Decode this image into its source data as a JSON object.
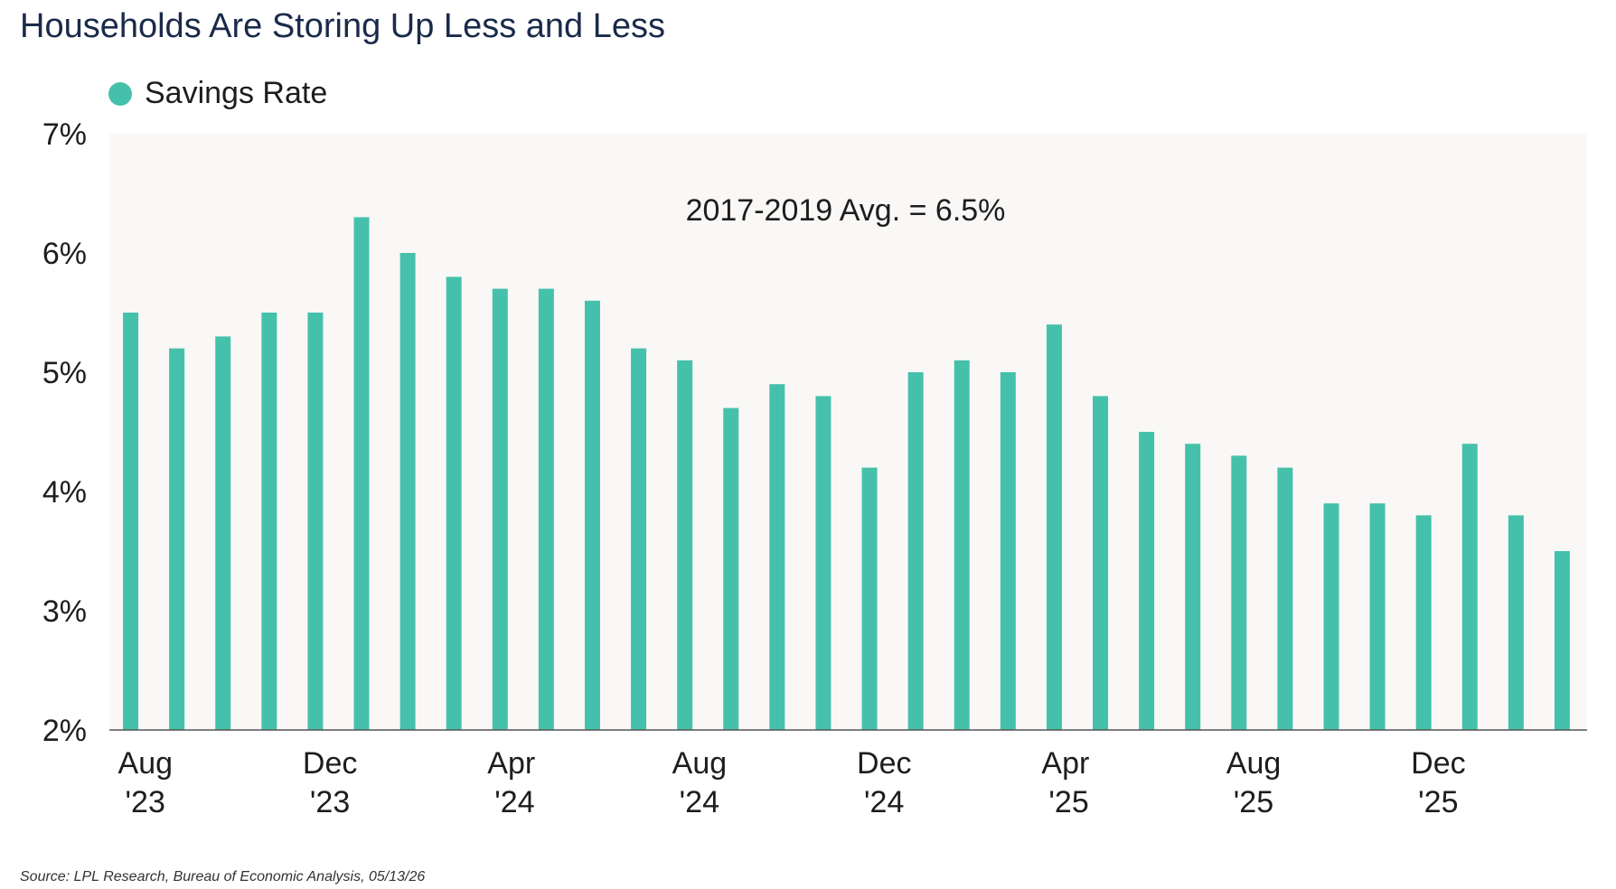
{
  "title": "Households Are Storing Up Less and Less",
  "source": "Source: LPL Research, Bureau of Economic Analysis, 05/13/26",
  "colors": {
    "bar": "#45c1ab",
    "plot_background": "#f9f8f6",
    "axis": "#555555",
    "title": "#1b2a4a"
  },
  "chart_data": {
    "type": "bar",
    "title": "Households Are Storing Up Less and Less",
    "legend": {
      "position": "top-left",
      "entries": [
        "Savings Rate"
      ]
    },
    "ylim": [
      2,
      7
    ],
    "yticks": [
      2,
      3,
      4,
      5,
      6,
      7
    ],
    "ytick_labels": [
      "2%",
      "3%",
      "4%",
      "5%",
      "6%",
      "7%"
    ],
    "grid": false,
    "categories": [
      "Aug '23",
      "Sep '23",
      "Oct '23",
      "Nov '23",
      "Dec '23",
      "Jan '24",
      "Feb '24",
      "Mar '24",
      "Apr '24",
      "May '24",
      "Jun '24",
      "Jul '24",
      "Aug '24",
      "Sep '24",
      "Oct '24",
      "Nov '24",
      "Dec '24",
      "Jan '25",
      "Feb '25",
      "Mar '25",
      "Apr '25",
      "May '25",
      "Jun '25",
      "Jul '25",
      "Aug '25",
      "Sep '25",
      "Oct '25",
      "Nov '25",
      "Dec '25",
      "Jan '26",
      "Feb '26",
      "Mar '26"
    ],
    "xtick_labels": [
      {
        "index": 0,
        "line1": "Aug",
        "line2": "'23"
      },
      {
        "index": 4,
        "line1": "Dec",
        "line2": "'23"
      },
      {
        "index": 8,
        "line1": "Apr",
        "line2": "'24"
      },
      {
        "index": 12,
        "line1": "Aug",
        "line2": "'24"
      },
      {
        "index": 16,
        "line1": "Dec",
        "line2": "'24"
      },
      {
        "index": 20,
        "line1": "Apr",
        "line2": "'25"
      },
      {
        "index": 24,
        "line1": "Aug",
        "line2": "'25"
      },
      {
        "index": 28,
        "line1": "Dec",
        "line2": "'25"
      }
    ],
    "series": [
      {
        "name": "Savings Rate",
        "values": [
          5.5,
          5.2,
          5.3,
          5.5,
          5.5,
          6.3,
          6.0,
          5.8,
          5.7,
          5.7,
          5.6,
          5.2,
          5.1,
          4.7,
          4.9,
          4.8,
          4.2,
          5.0,
          5.1,
          5.0,
          5.4,
          4.8,
          4.5,
          4.4,
          4.3,
          4.2,
          3.9,
          3.9,
          3.8,
          4.4,
          3.8,
          3.5
        ]
      }
    ],
    "annotations": [
      {
        "text": "2017-2019 Avg. = 6.5%",
        "value": 6.5
      }
    ]
  }
}
